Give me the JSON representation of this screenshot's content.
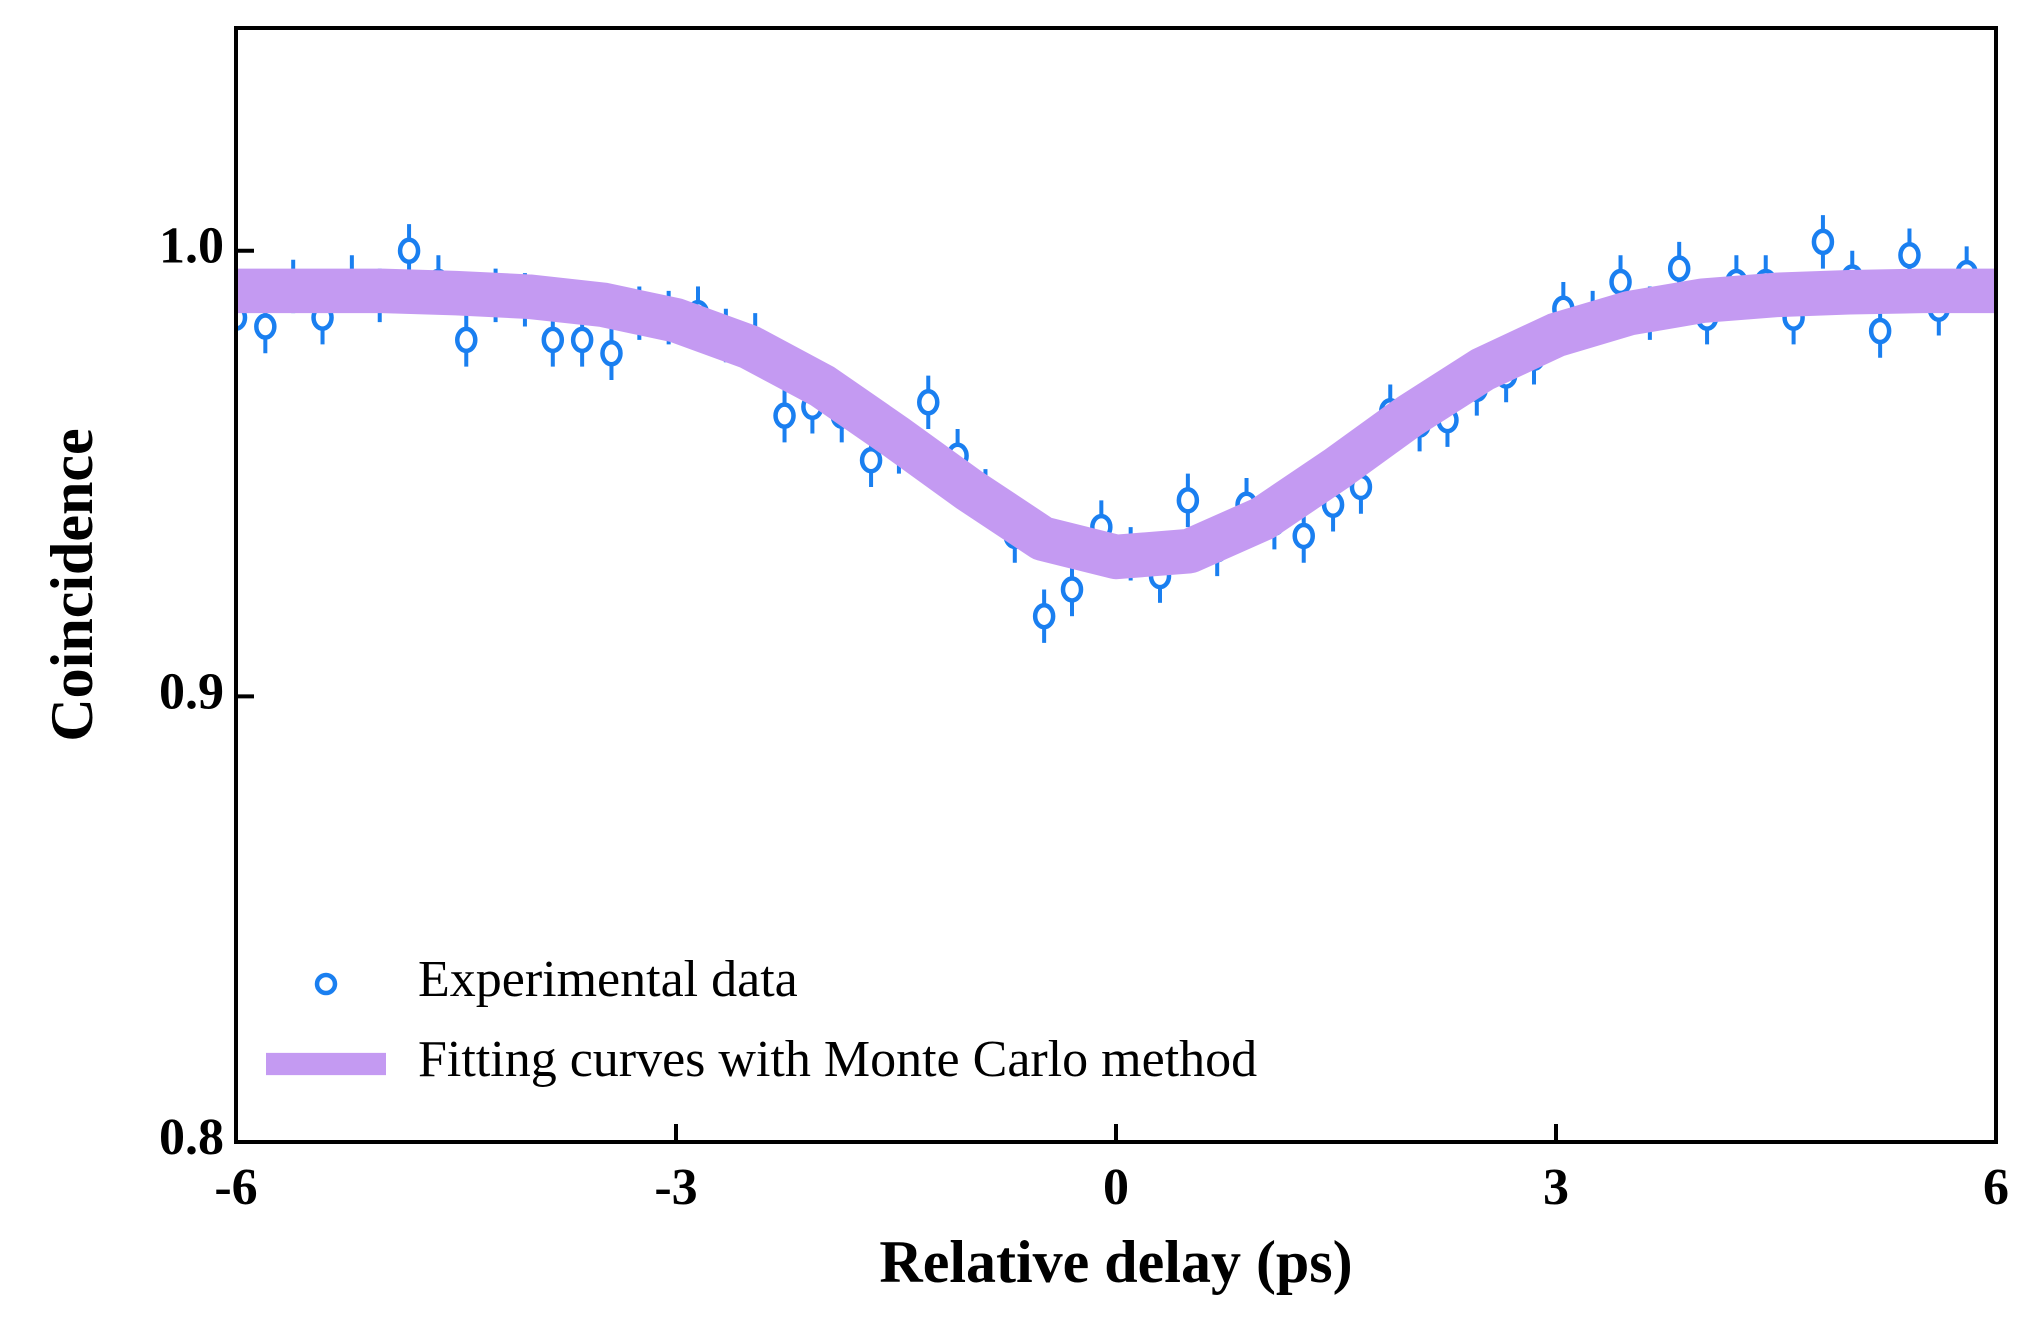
{
  "chart_data": {
    "type": "scatter",
    "xlabel": "Relative delay (ps)",
    "ylabel": "Coincidence",
    "xlim": [
      -6,
      6
    ],
    "xticks": [
      -6,
      -3,
      0,
      3,
      6
    ],
    "ylim": [
      0.8,
      1.05
    ],
    "yticks": [
      {
        "value": 0.8,
        "label": "0.8"
      },
      {
        "value": 0.9,
        "label": "0.9"
      },
      {
        "value": 1.0,
        "label": "1.0"
      }
    ],
    "legend": "lower left",
    "series": [
      {
        "name": "Experimental data",
        "color": "#1a7ff0",
        "x": [
          -6.0,
          -5.8,
          -5.61,
          -5.41,
          -5.21,
          -5.02,
          -4.82,
          -4.62,
          -4.43,
          -4.23,
          -4.03,
          -3.84,
          -3.64,
          -3.44,
          -3.25,
          -3.05,
          -2.85,
          -2.66,
          -2.46,
          -2.26,
          -2.07,
          -1.87,
          -1.67,
          -1.48,
          -1.28,
          -1.08,
          -0.89,
          -0.69,
          -0.49,
          -0.3,
          -0.1,
          0.1,
          0.3,
          0.49,
          0.69,
          0.89,
          1.08,
          1.28,
          1.48,
          1.67,
          1.87,
          2.07,
          2.26,
          2.46,
          2.66,
          2.85,
          3.05,
          3.25,
          3.44,
          3.64,
          3.84,
          4.03,
          4.23,
          4.43,
          4.62,
          4.82,
          5.02,
          5.21,
          5.41,
          5.61,
          5.8,
          6.0
        ],
        "values": [
          0.985,
          0.983,
          0.992,
          0.985,
          0.993,
          0.99,
          1.0,
          0.993,
          0.98,
          0.99,
          0.989,
          0.98,
          0.98,
          0.977,
          0.986,
          0.985,
          0.986,
          0.981,
          0.98,
          0.963,
          0.965,
          0.963,
          0.953,
          0.956,
          0.966,
          0.954,
          0.945,
          0.936,
          0.918,
          0.924,
          0.938,
          0.932,
          0.927,
          0.944,
          0.933,
          0.943,
          0.939,
          0.936,
          0.943,
          0.947,
          0.964,
          0.961,
          0.962,
          0.969,
          0.972,
          0.976,
          0.987,
          0.985,
          0.993,
          0.986,
          0.996,
          0.985,
          0.993,
          0.993,
          0.985,
          1.002,
          0.994,
          0.982,
          0.999,
          0.987,
          0.995,
          0.991
        ],
        "error": [
          0.006,
          0.006,
          0.006,
          0.006,
          0.006,
          0.006,
          0.006,
          0.006,
          0.006,
          0.006,
          0.006,
          0.006,
          0.006,
          0.006,
          0.006,
          0.006,
          0.006,
          0.006,
          0.006,
          0.006,
          0.006,
          0.006,
          0.006,
          0.006,
          0.006,
          0.006,
          0.006,
          0.006,
          0.006,
          0.006,
          0.006,
          0.006,
          0.006,
          0.006,
          0.006,
          0.006,
          0.006,
          0.006,
          0.006,
          0.006,
          0.006,
          0.006,
          0.006,
          0.006,
          0.006,
          0.006,
          0.006,
          0.006,
          0.006,
          0.006,
          0.006,
          0.006,
          0.006,
          0.006,
          0.006,
          0.006,
          0.006,
          0.006,
          0.006,
          0.006,
          0.006,
          0.006
        ]
      },
      {
        "name": "Fitting curves with Monte Carlo method",
        "color": "#c49af2",
        "type": "band",
        "band_halfwidth": 0.005,
        "x": [
          -6,
          -5.5,
          -5,
          -4.5,
          -4,
          -3.5,
          -3,
          -2.5,
          -2,
          -1.5,
          -1,
          -0.5,
          0,
          0.5,
          1,
          1.5,
          2,
          2.5,
          3,
          3.5,
          4,
          4.5,
          5,
          5.5,
          6
        ],
        "values": [
          0.991,
          0.991,
          0.991,
          0.9905,
          0.9897,
          0.9879,
          0.9844,
          0.9784,
          0.9696,
          0.9582,
          0.9463,
          0.9354,
          0.9313,
          0.9326,
          0.9399,
          0.951,
          0.9629,
          0.9734,
          0.9811,
          0.986,
          0.9888,
          0.9901,
          0.9907,
          0.991,
          0.991
        ]
      }
    ]
  }
}
